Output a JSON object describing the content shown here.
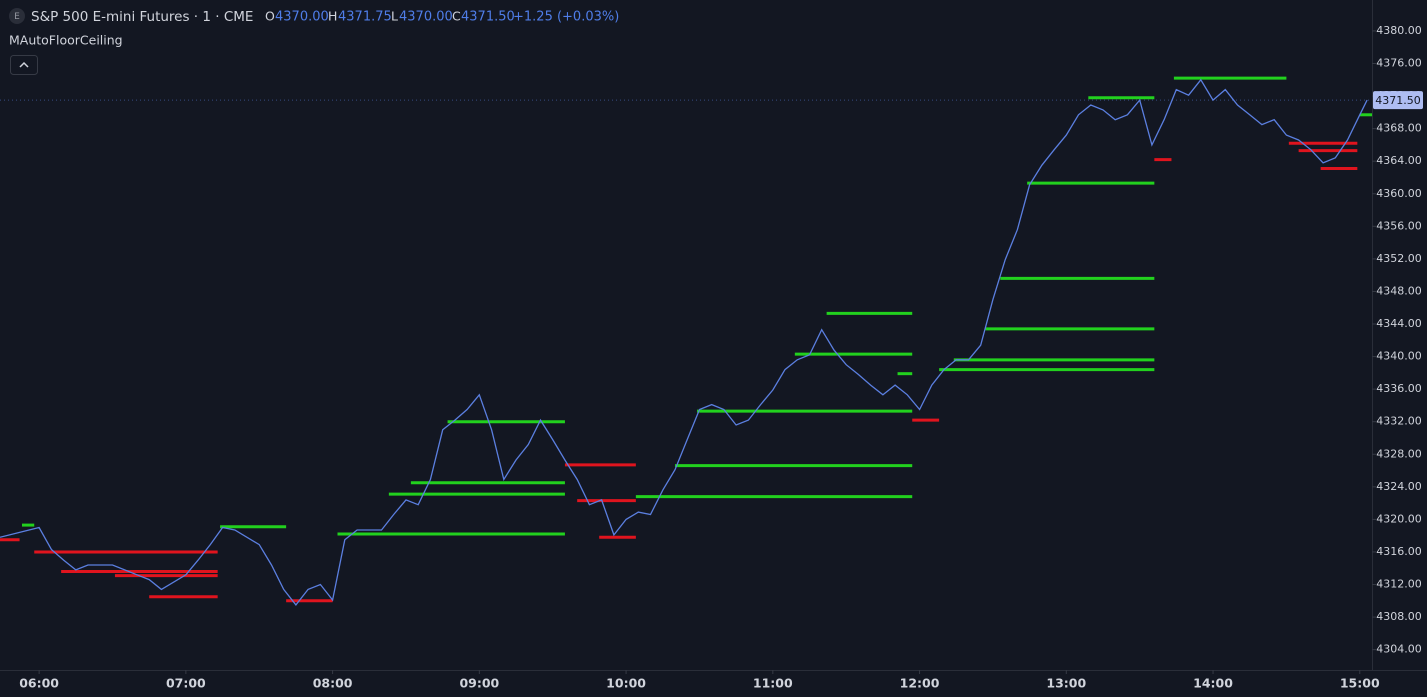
{
  "header": {
    "icon": "E",
    "title": "S&P 500 E-mini Futures · 1 · CME",
    "o_key": "O",
    "open": "4370.00",
    "h_key": "H",
    "high": "4371.75",
    "l_key": "L",
    "low": "4370.00",
    "c_key": "C",
    "close": "4371.50",
    "change": "+1.25 (+0.03%)",
    "indicator": "MAutoFloorCeiling"
  },
  "chart_data": {
    "type": "line",
    "color": "#5b7fe0",
    "grid": false,
    "xlim": [
      "05:44",
      "15:05"
    ],
    "xticks": [
      "06:00",
      "07:00",
      "08:00",
      "09:00",
      "10:00",
      "11:00",
      "12:00",
      "13:00",
      "14:00",
      "15:00"
    ],
    "ylim": [
      4301.5,
      4383.8
    ],
    "yticks": [
      {
        "value": 4304,
        "label": "4304.00"
      },
      {
        "value": 4308,
        "label": "4308.00"
      },
      {
        "value": 4312,
        "label": "4312.00"
      },
      {
        "value": 4316,
        "label": "4316.00"
      },
      {
        "value": 4320,
        "label": "4320.00"
      },
      {
        "value": 4324,
        "label": "4324.00"
      },
      {
        "value": 4328,
        "label": "4328.00"
      },
      {
        "value": 4332,
        "label": "4332.00"
      },
      {
        "value": 4336,
        "label": "4336.00"
      },
      {
        "value": 4340,
        "label": "4340.00"
      },
      {
        "value": 4344,
        "label": "4344.00"
      },
      {
        "value": 4348,
        "label": "4348.00"
      },
      {
        "value": 4352,
        "label": "4352.00"
      },
      {
        "value": 4356,
        "label": "4356.00"
      },
      {
        "value": 4360,
        "label": "4360.00"
      },
      {
        "value": 4364,
        "label": "4364.00"
      },
      {
        "value": 4368,
        "label": "4368.00"
      },
      {
        "value": 4372,
        "label": "4372.00"
      },
      {
        "value": 4376,
        "label": "4376.00"
      },
      {
        "value": 4380,
        "label": "4380.00"
      }
    ],
    "price_label": {
      "value": 4371.5,
      "label": "4371.50"
    },
    "x": [
      "05:44",
      "06:00",
      "06:05",
      "06:10",
      "06:15",
      "06:20",
      "06:30",
      "06:40",
      "06:45",
      "06:50",
      "07:00",
      "07:05",
      "07:10",
      "07:15",
      "07:20",
      "07:30",
      "07:35",
      "07:40",
      "07:45",
      "07:50",
      "07:55",
      "08:00",
      "08:05",
      "08:10",
      "08:20",
      "08:25",
      "08:30",
      "08:35",
      "08:40",
      "08:45",
      "08:50",
      "08:55",
      "09:00",
      "09:05",
      "09:10",
      "09:15",
      "09:20",
      "09:25",
      "09:30",
      "09:35",
      "09:40",
      "09:45",
      "09:50",
      "09:55",
      "10:00",
      "10:05",
      "10:10",
      "10:15",
      "10:20",
      "10:25",
      "10:30",
      "10:35",
      "10:40",
      "10:45",
      "10:50",
      "10:55",
      "11:00",
      "11:05",
      "11:10",
      "11:15",
      "11:20",
      "11:25",
      "11:30",
      "11:35",
      "11:40",
      "11:45",
      "11:50",
      "11:55",
      "12:00",
      "12:05",
      "12:10",
      "12:15",
      "12:20",
      "12:25",
      "12:30",
      "12:35",
      "12:40",
      "12:45",
      "12:50",
      "12:55",
      "13:00",
      "13:05",
      "13:10",
      "13:15",
      "13:20",
      "13:25",
      "13:30",
      "13:35",
      "13:40",
      "13:45",
      "13:50",
      "13:55",
      "14:00",
      "14:05",
      "14:10",
      "14:15",
      "14:20",
      "14:25",
      "14:30",
      "14:35",
      "14:40",
      "14:45",
      "14:50",
      "14:55",
      "15:00",
      "15:03"
    ],
    "values": [
      4317.8,
      4319,
      4316.3,
      4315,
      4313.8,
      4314.4,
      4314.4,
      4313.2,
      4312.6,
      4311.4,
      4313.2,
      4315,
      4316.9,
      4319,
      4318.7,
      4316.9,
      4314.4,
      4311.4,
      4309.5,
      4311.4,
      4312,
      4310.1,
      4317.5,
      4318.7,
      4318.7,
      4320.6,
      4322.4,
      4321.8,
      4324.9,
      4331,
      4332.2,
      4333.5,
      4335.3,
      4331,
      4324.9,
      4327.3,
      4329.2,
      4332.2,
      4329.8,
      4327.3,
      4324.9,
      4321.8,
      4322.4,
      4318.1,
      4320,
      4320.9,
      4320.6,
      4323.6,
      4326.1,
      4329.8,
      4333.5,
      4334.1,
      4333.5,
      4331.6,
      4332.2,
      4334.1,
      4335.9,
      4338.4,
      4339.6,
      4340.2,
      4343.3,
      4340.8,
      4339,
      4337.8,
      4336.5,
      4335.3,
      4336.5,
      4335.3,
      4333.5,
      4336.5,
      4338.4,
      4339.6,
      4339.6,
      4341.4,
      4347,
      4351.9,
      4355.6,
      4361.1,
      4363.5,
      4365.4,
      4367.2,
      4369.7,
      4370.9,
      4370.3,
      4369.1,
      4369.7,
      4371.5,
      4366,
      4369.1,
      4372.8,
      4372.1,
      4374,
      4371.5,
      4372.8,
      4370.9,
      4369.7,
      4368.5,
      4369.1,
      4367.2,
      4366.6,
      4365.4,
      4363.8,
      4364.4,
      4366.6,
      4369.7,
      4371.5
    ],
    "levels": [
      {
        "start": "05:44",
        "end": "05:52",
        "value": 4317.5,
        "color": "#e0141e"
      },
      {
        "start": "05:58",
        "end": "07:13",
        "value": 4316.0,
        "color": "#e0141e"
      },
      {
        "start": "06:09",
        "end": "07:13",
        "value": 4313.6,
        "color": "#e0141e"
      },
      {
        "start": "06:31",
        "end": "07:13",
        "value": 4313.1,
        "color": "#e0141e"
      },
      {
        "start": "06:45",
        "end": "07:13",
        "value": 4310.5,
        "color": "#e0141e"
      },
      {
        "start": "07:41",
        "end": "08:00",
        "value": 4310.0,
        "color": "#e0141e"
      },
      {
        "start": "09:35",
        "end": "10:04",
        "value": 4326.7,
        "color": "#e0141e"
      },
      {
        "start": "09:40",
        "end": "10:04",
        "value": 4322.3,
        "color": "#e0141e"
      },
      {
        "start": "09:49",
        "end": "10:04",
        "value": 4317.8,
        "color": "#e0141e"
      },
      {
        "start": "11:57",
        "end": "12:08",
        "value": 4332.2,
        "color": "#e0141e"
      },
      {
        "start": "13:36",
        "end": "13:43",
        "value": 4364.2,
        "color": "#e0141e"
      },
      {
        "start": "14:31",
        "end": "14:59",
        "value": 4366.2,
        "color": "#e0141e"
      },
      {
        "start": "14:35",
        "end": "14:59",
        "value": 4365.3,
        "color": "#e0141e"
      },
      {
        "start": "14:44",
        "end": "14:59",
        "value": 4363.1,
        "color": "#e0141e"
      },
      {
        "start": "05:53",
        "end": "05:58",
        "value": 4319.3,
        "color": "#22d11e"
      },
      {
        "start": "07:14",
        "end": "07:41",
        "value": 4319.1,
        "color": "#22d11e"
      },
      {
        "start": "08:02",
        "end": "09:35",
        "value": 4318.2,
        "color": "#22d11e"
      },
      {
        "start": "08:23",
        "end": "09:35",
        "value": 4323.1,
        "color": "#22d11e"
      },
      {
        "start": "08:32",
        "end": "09:35",
        "value": 4324.5,
        "color": "#22d11e"
      },
      {
        "start": "08:47",
        "end": "09:35",
        "value": 4332.0,
        "color": "#22d11e"
      },
      {
        "start": "10:04",
        "end": "11:57",
        "value": 4322.8,
        "color": "#22d11e"
      },
      {
        "start": "10:20",
        "end": "11:57",
        "value": 4326.6,
        "color": "#22d11e"
      },
      {
        "start": "10:29",
        "end": "11:57",
        "value": 4333.3,
        "color": "#22d11e"
      },
      {
        "start": "11:09",
        "end": "11:57",
        "value": 4340.3,
        "color": "#22d11e"
      },
      {
        "start": "11:22",
        "end": "11:57",
        "value": 4345.3,
        "color": "#22d11e"
      },
      {
        "start": "11:51",
        "end": "11:57",
        "value": 4337.9,
        "color": "#22d11e"
      },
      {
        "start": "12:08",
        "end": "13:36",
        "value": 4338.4,
        "color": "#22d11e"
      },
      {
        "start": "12:14",
        "end": "13:36",
        "value": 4339.6,
        "color": "#22d11e"
      },
      {
        "start": "12:27",
        "end": "13:36",
        "value": 4343.4,
        "color": "#22d11e"
      },
      {
        "start": "12:33",
        "end": "13:36",
        "value": 4349.6,
        "color": "#22d11e"
      },
      {
        "start": "12:44",
        "end": "13:36",
        "value": 4361.3,
        "color": "#22d11e"
      },
      {
        "start": "13:09",
        "end": "13:36",
        "value": 4371.8,
        "color": "#22d11e"
      },
      {
        "start": "13:44",
        "end": "14:30",
        "value": 4374.2,
        "color": "#22d11e"
      },
      {
        "start": "15:00",
        "end": "15:05",
        "value": 4369.7,
        "color": "#22d11e"
      }
    ]
  }
}
